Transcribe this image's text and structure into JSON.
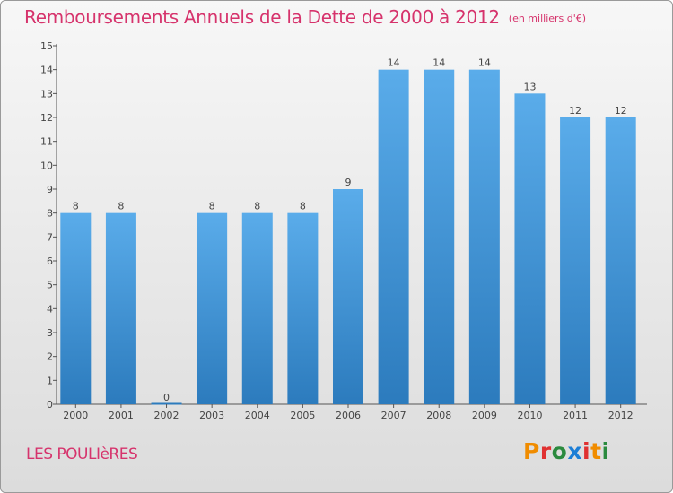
{
  "header": {
    "title": "Remboursements Annuels de la Dette de 2000 à 2012",
    "unit": "(en milliers d'€)"
  },
  "footer": {
    "commune": "LES POULIèRES",
    "logo": "Proxiti"
  },
  "colors": {
    "title": "#d6336c",
    "bar_top": "#5aacea",
    "bar_bottom": "#2c7bbd",
    "logo_letters": [
      "#f08c00",
      "#e03131",
      "#2b8a3e",
      "#1c7ed6",
      "#e03131",
      "#f08c00",
      "#2b8a3e"
    ]
  },
  "chart_data": {
    "type": "bar",
    "title": "Remboursements Annuels de la Dette de 2000 à 2012",
    "subtitle": "(en milliers d'€)",
    "categories": [
      "2000",
      "2001",
      "2002",
      "2003",
      "2004",
      "2005",
      "2006",
      "2007",
      "2008",
      "2009",
      "2010",
      "2011",
      "2012"
    ],
    "values": [
      8,
      8,
      0,
      8,
      8,
      8,
      9,
      14,
      14,
      14,
      13,
      12,
      12
    ],
    "data_labels": [
      "8",
      "8",
      "0",
      "8",
      "8",
      "8",
      "9",
      "14",
      "14",
      "14",
      "13",
      "12",
      "12"
    ],
    "y_ticks": [
      0,
      1,
      2,
      3,
      4,
      5,
      6,
      7,
      8,
      9,
      10,
      11,
      12,
      13,
      14,
      15
    ],
    "ylim": [
      0,
      15
    ],
    "grid": false,
    "legend": "none"
  }
}
